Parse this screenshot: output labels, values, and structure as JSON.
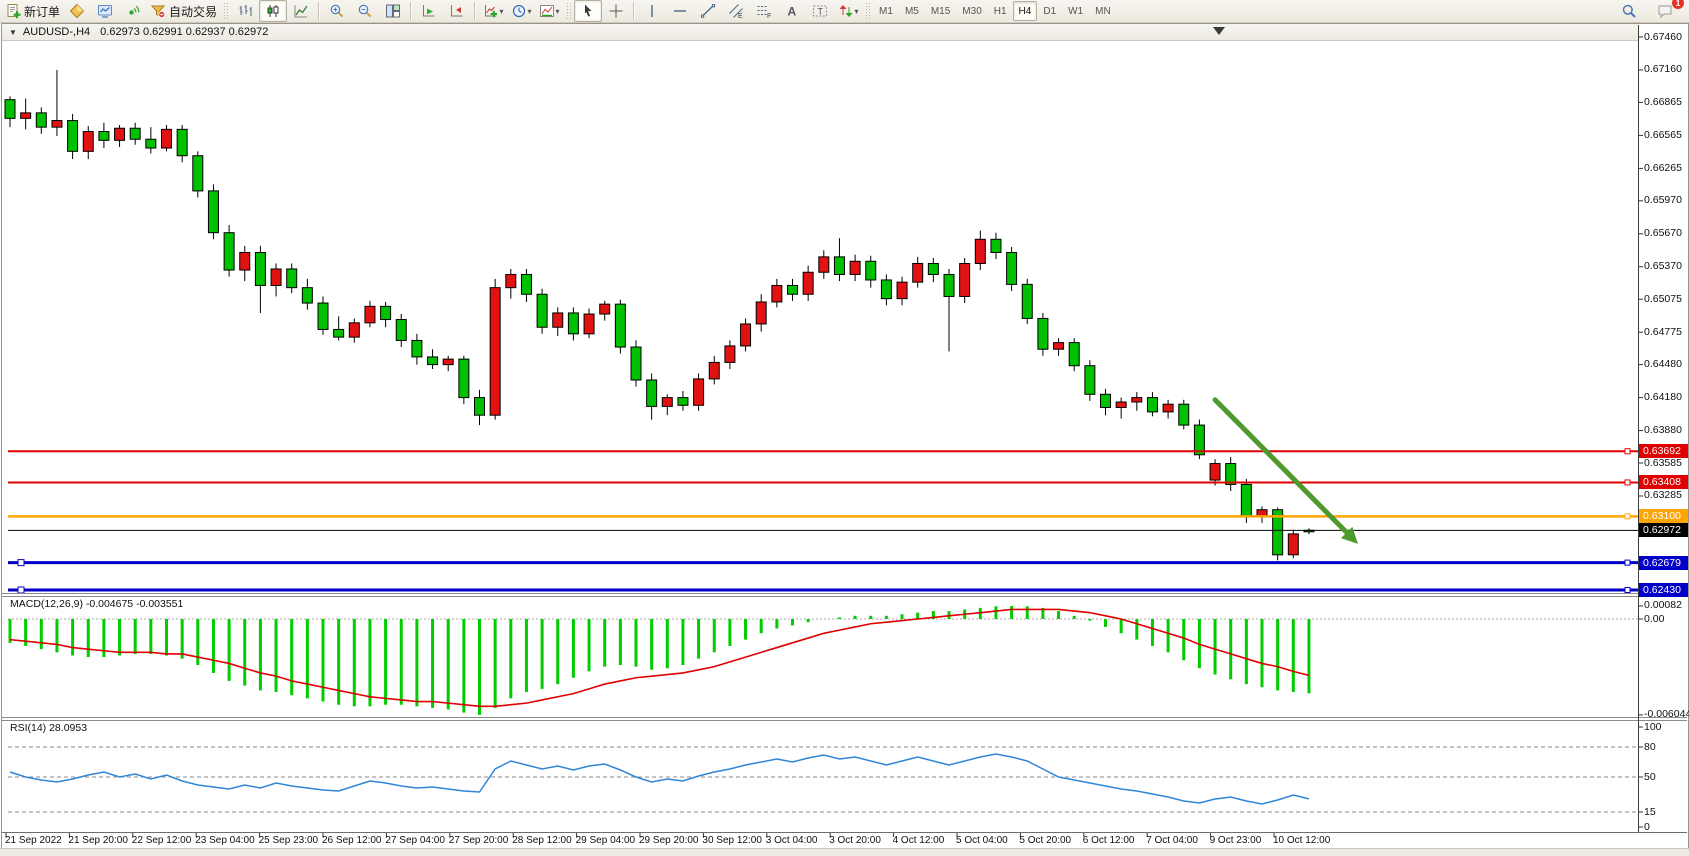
{
  "toolbar": {
    "groups": [
      {
        "name": "trade",
        "handle": false,
        "items": [
          {
            "name": "new-order-button",
            "icon": "new-order",
            "label": "新订单"
          },
          {
            "name": "market-watch-button",
            "icon": "diamond",
            "label": ""
          },
          {
            "name": "chart-window-button",
            "icon": "monitor",
            "label": ""
          },
          {
            "name": "signals-button",
            "icon": "signal",
            "label": ""
          },
          {
            "name": "auto-trading-button",
            "icon": "auto-trade",
            "label": "自动交易"
          }
        ]
      },
      {
        "name": "chart-type",
        "handle": true,
        "items": [
          {
            "name": "bar-chart-button",
            "icon": "bars",
            "label": ""
          },
          {
            "name": "candlestick-chart-button",
            "icon": "candles",
            "label": "",
            "active": true
          },
          {
            "name": "line-chart-button",
            "icon": "line-chart",
            "label": ""
          }
        ]
      },
      {
        "name": "zoom",
        "handle": false,
        "items": [
          {
            "name": "zoom-in-button",
            "icon": "zoom-in",
            "label": ""
          },
          {
            "name": "zoom-out-button",
            "icon": "zoom-out",
            "label": ""
          },
          {
            "name": "tile-windows-button",
            "icon": "tile",
            "label": ""
          }
        ]
      },
      {
        "name": "scroll",
        "handle": false,
        "items": [
          {
            "name": "auto-scroll-button",
            "icon": "auto-scroll",
            "label": ""
          },
          {
            "name": "chart-shift-button",
            "icon": "chart-shift",
            "label": ""
          }
        ]
      },
      {
        "name": "insert",
        "handle": false,
        "items": [
          {
            "name": "indicators-button",
            "icon": "indicators",
            "label": "",
            "dropdown": true
          },
          {
            "name": "periods-button",
            "icon": "periods",
            "label": "",
            "dropdown": true
          },
          {
            "name": "templates-button",
            "icon": "templates",
            "label": "",
            "dropdown": true
          }
        ]
      },
      {
        "name": "cursor",
        "handle": true,
        "items": [
          {
            "name": "cursor-button",
            "icon": "pointer",
            "label": "",
            "active": true
          },
          {
            "name": "crosshair-button",
            "icon": "crosshair",
            "label": ""
          }
        ]
      },
      {
        "name": "draw",
        "handle": false,
        "items": [
          {
            "name": "vertical-line-button",
            "icon": "vline",
            "label": ""
          },
          {
            "name": "horizontal-line-button",
            "icon": "hline",
            "label": ""
          },
          {
            "name": "trendline-button",
            "icon": "trendline",
            "label": ""
          },
          {
            "name": "equidistant-channel-button",
            "icon": "channel",
            "label": ""
          },
          {
            "name": "fibonacci-button",
            "icon": "fibonacci",
            "label": ""
          },
          {
            "name": "text-button",
            "icon": "text",
            "label": ""
          },
          {
            "name": "text-label-button",
            "icon": "text-label",
            "label": ""
          },
          {
            "name": "arrows-button",
            "icon": "arrows",
            "label": "",
            "dropdown": true
          }
        ]
      },
      {
        "name": "timeframes",
        "handle": true,
        "timeframes": [
          {
            "label": "M1"
          },
          {
            "label": "M5"
          },
          {
            "label": "M15"
          },
          {
            "label": "M30"
          },
          {
            "label": "H1"
          },
          {
            "label": "H4",
            "active": true
          },
          {
            "label": "D1"
          },
          {
            "label": "W1"
          },
          {
            "label": "MN"
          }
        ]
      }
    ],
    "right": {
      "notification_count": "1"
    }
  },
  "caption": {
    "symbol_period": "AUDUSD-,H4",
    "ohlc_display": "0.62973 0.62991 0.62937 0.62972"
  },
  "indicators_text": {
    "macd_title": "MACD(12,26,9) -0.004675 -0.003551",
    "rsi_title": "RSI(14) 28.0953"
  },
  "chart_data": {
    "type": "candlestick",
    "symbol": "AUDUSD-",
    "timeframe": "H4",
    "current_bar": {
      "open": 0.62973,
      "high": 0.62991,
      "low": 0.62937,
      "close": 0.62972
    },
    "colors": {
      "bearish": "#00C100",
      "bullish": "#E31212",
      "macd_hist": "#00CC00",
      "macd_signal": "#E00000",
      "rsi_line": "#2F86D7",
      "arrow": "#4E9A2E"
    },
    "price_axis_ticks": [
      "0.67460",
      "0.67160",
      "0.66865",
      "0.66565",
      "0.66265",
      "0.65970",
      "0.65670",
      "0.65370",
      "0.65075",
      "0.64775",
      "0.64480",
      "0.64180",
      "0.63880",
      "0.63585",
      "0.63285"
    ],
    "price_axis_tick_values": [
      0.6746,
      0.6716,
      0.66865,
      0.66565,
      0.66265,
      0.6597,
      0.6567,
      0.6537,
      0.65075,
      0.64775,
      0.6448,
      0.6418,
      0.6388,
      0.63585,
      0.63285
    ],
    "horizontal_lines": [
      {
        "label": "0.63692",
        "value": 0.63692,
        "color": "#E00000",
        "width": 2,
        "anchors": [
          "right"
        ]
      },
      {
        "label": "0.63408",
        "value": 0.63408,
        "color": "#E00000",
        "width": 2,
        "anchors": [
          "right"
        ]
      },
      {
        "label": "0.63100",
        "value": 0.631,
        "color": "#FFA500",
        "width": 2.5,
        "anchors": [
          "right"
        ]
      },
      {
        "label": "0.62972",
        "value": 0.62972,
        "color": "#000000",
        "width": 1,
        "anchors": [],
        "current_price": true
      },
      {
        "label": "0.62679",
        "value": 0.62679,
        "color": "#0000C8",
        "width": 3,
        "anchors": [
          "left",
          "right"
        ]
      },
      {
        "label": "0.62430",
        "value": 0.6243,
        "color": "#0000C8",
        "width": 3,
        "anchors": [
          "left",
          "right"
        ]
      }
    ],
    "candles": [
      [
        0.6689,
        0.6692,
        0.6664,
        0.6672
      ],
      [
        0.6672,
        0.669,
        0.6662,
        0.6677
      ],
      [
        0.6677,
        0.6682,
        0.6658,
        0.6664
      ],
      [
        0.6664,
        0.6716,
        0.6656,
        0.667
      ],
      [
        0.667,
        0.6676,
        0.6635,
        0.6642
      ],
      [
        0.6642,
        0.6665,
        0.6635,
        0.666
      ],
      [
        0.666,
        0.6668,
        0.6645,
        0.6652
      ],
      [
        0.6652,
        0.6666,
        0.6646,
        0.6663
      ],
      [
        0.6663,
        0.6668,
        0.6648,
        0.6653
      ],
      [
        0.6653,
        0.6664,
        0.664,
        0.6645
      ],
      [
        0.6645,
        0.6666,
        0.6642,
        0.6662
      ],
      [
        0.6662,
        0.6666,
        0.6632,
        0.6638
      ],
      [
        0.6638,
        0.6642,
        0.66,
        0.6606
      ],
      [
        0.6606,
        0.6612,
        0.6562,
        0.6568
      ],
      [
        0.6568,
        0.6575,
        0.6528,
        0.6534
      ],
      [
        0.6534,
        0.6556,
        0.6524,
        0.655
      ],
      [
        0.655,
        0.6556,
        0.6495,
        0.652
      ],
      [
        0.652,
        0.654,
        0.651,
        0.6535
      ],
      [
        0.6535,
        0.654,
        0.6513,
        0.6518
      ],
      [
        0.6518,
        0.6526,
        0.6498,
        0.6504
      ],
      [
        0.6504,
        0.651,
        0.6475,
        0.648
      ],
      [
        0.648,
        0.6492,
        0.647,
        0.6473
      ],
      [
        0.6473,
        0.649,
        0.6468,
        0.6486
      ],
      [
        0.6486,
        0.6506,
        0.6482,
        0.6501
      ],
      [
        0.6501,
        0.6505,
        0.6482,
        0.6489
      ],
      [
        0.6489,
        0.6494,
        0.6464,
        0.647
      ],
      [
        0.647,
        0.6476,
        0.6448,
        0.6455
      ],
      [
        0.6455,
        0.6462,
        0.6444,
        0.6448
      ],
      [
        0.6448,
        0.6456,
        0.6442,
        0.6453
      ],
      [
        0.6453,
        0.6456,
        0.6412,
        0.6418
      ],
      [
        0.6418,
        0.6425,
        0.6393,
        0.6402
      ],
      [
        0.6402,
        0.6526,
        0.6398,
        0.6518
      ],
      [
        0.6518,
        0.6535,
        0.6508,
        0.653
      ],
      [
        0.653,
        0.6535,
        0.6505,
        0.6512
      ],
      [
        0.6512,
        0.6517,
        0.6476,
        0.6482
      ],
      [
        0.6482,
        0.65,
        0.6474,
        0.6495
      ],
      [
        0.6495,
        0.65,
        0.647,
        0.6476
      ],
      [
        0.6476,
        0.6499,
        0.6472,
        0.6494
      ],
      [
        0.6494,
        0.6506,
        0.6488,
        0.6503
      ],
      [
        0.6503,
        0.6507,
        0.6458,
        0.6464
      ],
      [
        0.6464,
        0.647,
        0.6428,
        0.6434
      ],
      [
        0.6434,
        0.644,
        0.6398,
        0.641
      ],
      [
        0.641,
        0.6421,
        0.6402,
        0.6418
      ],
      [
        0.6418,
        0.6424,
        0.6406,
        0.6411
      ],
      [
        0.6411,
        0.644,
        0.6406,
        0.6435
      ],
      [
        0.6435,
        0.6456,
        0.643,
        0.645
      ],
      [
        0.645,
        0.647,
        0.6444,
        0.6465
      ],
      [
        0.6465,
        0.649,
        0.646,
        0.6485
      ],
      [
        0.6485,
        0.6512,
        0.6478,
        0.6505
      ],
      [
        0.6505,
        0.6526,
        0.65,
        0.652
      ],
      [
        0.652,
        0.6526,
        0.6506,
        0.6512
      ],
      [
        0.6512,
        0.6538,
        0.6506,
        0.6532
      ],
      [
        0.6532,
        0.6552,
        0.6526,
        0.6546
      ],
      [
        0.6546,
        0.6563,
        0.6524,
        0.653
      ],
      [
        0.653,
        0.6548,
        0.6524,
        0.6542
      ],
      [
        0.6542,
        0.6547,
        0.6518,
        0.6525
      ],
      [
        0.6525,
        0.653,
        0.6502,
        0.6508
      ],
      [
        0.6508,
        0.6528,
        0.6502,
        0.6523
      ],
      [
        0.6523,
        0.6546,
        0.6518,
        0.654
      ],
      [
        0.654,
        0.6545,
        0.6523,
        0.653
      ],
      [
        0.653,
        0.6535,
        0.646,
        0.651
      ],
      [
        0.651,
        0.6545,
        0.6504,
        0.654
      ],
      [
        0.654,
        0.657,
        0.6534,
        0.6562
      ],
      [
        0.6562,
        0.6568,
        0.6544,
        0.655
      ],
      [
        0.655,
        0.6555,
        0.6515,
        0.6521
      ],
      [
        0.6521,
        0.6526,
        0.6485,
        0.649
      ],
      [
        0.649,
        0.6495,
        0.6456,
        0.6462
      ],
      [
        0.6462,
        0.6472,
        0.6456,
        0.6468
      ],
      [
        0.6468,
        0.6472,
        0.6442,
        0.6447
      ],
      [
        0.6447,
        0.6452,
        0.6415,
        0.6421
      ],
      [
        0.6421,
        0.6426,
        0.6402,
        0.6409
      ],
      [
        0.6409,
        0.6418,
        0.6399,
        0.6414
      ],
      [
        0.6414,
        0.6423,
        0.6406,
        0.6418
      ],
      [
        0.6418,
        0.6423,
        0.6401,
        0.6405
      ],
      [
        0.6405,
        0.6416,
        0.6399,
        0.6412
      ],
      [
        0.6412,
        0.6416,
        0.6389,
        0.6393
      ],
      [
        0.6393,
        0.6398,
        0.6362,
        0.6366
      ],
      [
        0.6343,
        0.6362,
        0.6338,
        0.6358
      ],
      [
        0.6358,
        0.6364,
        0.6333,
        0.6339
      ],
      [
        0.6339,
        0.6344,
        0.6304,
        0.631
      ],
      [
        0.631,
        0.6319,
        0.6304,
        0.6316
      ],
      [
        0.6316,
        0.6318,
        0.627,
        0.6275
      ],
      [
        0.6275,
        0.6298,
        0.6272,
        0.6294
      ],
      [
        0.62973,
        0.62991,
        0.62937,
        0.62972
      ]
    ],
    "indicators": {
      "macd": {
        "name": "MACD",
        "params": "12,26,9",
        "value": -0.004675,
        "signal_value": -0.003551,
        "axis_labels": [
          {
            "text": "0.00082",
            "v": 0.00082
          },
          {
            "text": "0.00",
            "v": 0.0
          },
          {
            "text": "-0.006044",
            "v": -0.006044
          }
        ],
        "histogram": [
          -0.0015,
          -0.0017,
          -0.0019,
          -0.0021,
          -0.0023,
          -0.0024,
          -0.0024,
          -0.0023,
          -0.0022,
          -0.0022,
          -0.0023,
          -0.0025,
          -0.0029,
          -0.0034,
          -0.0039,
          -0.0042,
          -0.0045,
          -0.0046,
          -0.0048,
          -0.005,
          -0.0052,
          -0.0054,
          -0.0055,
          -0.0055,
          -0.0054,
          -0.0054,
          -0.0055,
          -0.0056,
          -0.0057,
          -0.0059,
          -0.006044,
          -0.0056,
          -0.005,
          -0.0046,
          -0.0044,
          -0.0041,
          -0.0037,
          -0.0033,
          -0.003,
          -0.0029,
          -0.003,
          -0.0032,
          -0.0031,
          -0.0029,
          -0.0025,
          -0.0021,
          -0.0017,
          -0.0013,
          -0.0009,
          -0.0006,
          -0.0004,
          -0.0002,
          0.0,
          0.0001,
          0.0002,
          0.0002,
          0.0002,
          0.0003,
          0.0004,
          0.0005,
          0.0005,
          0.0006,
          0.0007,
          0.0008,
          0.00082,
          0.0008,
          0.0007,
          0.0005,
          0.0002,
          -0.0001,
          -0.0005,
          -0.0009,
          -0.0013,
          -0.0017,
          -0.0021,
          -0.0026,
          -0.0031,
          -0.0035,
          -0.0038,
          -0.0041,
          -0.0043,
          -0.0045,
          -0.0046,
          -0.004675
        ],
        "signal": [
          -0.0013,
          -0.0014,
          -0.0015,
          -0.0016,
          -0.0018,
          -0.0019,
          -0.002,
          -0.0021,
          -0.0021,
          -0.0021,
          -0.0022,
          -0.0022,
          -0.0024,
          -0.0026,
          -0.0028,
          -0.0031,
          -0.0034,
          -0.0036,
          -0.0039,
          -0.0041,
          -0.0043,
          -0.0045,
          -0.0047,
          -0.0049,
          -0.005,
          -0.0051,
          -0.0052,
          -0.0052,
          -0.0053,
          -0.0054,
          -0.0055,
          -0.0055,
          -0.0054,
          -0.0053,
          -0.0051,
          -0.0049,
          -0.0047,
          -0.0044,
          -0.0041,
          -0.0039,
          -0.0037,
          -0.0036,
          -0.0035,
          -0.0034,
          -0.0032,
          -0.003,
          -0.0027,
          -0.0024,
          -0.0021,
          -0.0018,
          -0.0015,
          -0.0012,
          -0.0009,
          -0.0007,
          -0.0005,
          -0.0003,
          -0.0002,
          -0.0001,
          0.0,
          0.0001,
          0.0002,
          0.0003,
          0.0004,
          0.0005,
          0.0006,
          0.0006,
          0.0006,
          0.0006,
          0.0005,
          0.0004,
          0.0002,
          0.0,
          -0.0003,
          -0.0006,
          -0.0009,
          -0.0012,
          -0.0016,
          -0.0019,
          -0.0022,
          -0.0025,
          -0.0028,
          -0.003,
          -0.0033,
          -0.003551
        ]
      },
      "rsi": {
        "name": "RSI",
        "params": "14",
        "value": 28.0953,
        "levels": [
          80,
          50,
          15
        ],
        "axis_labels": [
          100,
          80,
          50,
          15,
          0
        ],
        "series": [
          55,
          50,
          47,
          45,
          48,
          52,
          55,
          50,
          53,
          48,
          52,
          46,
          42,
          40,
          38,
          42,
          39,
          44,
          41,
          39,
          37,
          36,
          41,
          46,
          44,
          41,
          39,
          40,
          38,
          36,
          35,
          58,
          66,
          62,
          58,
          61,
          57,
          61,
          63,
          57,
          50,
          45,
          48,
          46,
          51,
          55,
          58,
          62,
          65,
          68,
          65,
          69,
          72,
          68,
          70,
          66,
          62,
          66,
          70,
          66,
          62,
          66,
          70,
          73,
          70,
          66,
          58,
          50,
          47,
          44,
          41,
          38,
          36,
          33,
          30,
          26,
          24,
          28,
          30,
          26,
          23,
          27,
          32,
          28.1
        ]
      }
    },
    "x_labels": [
      "21 Sep 2022",
      "21 Sep 20:00",
      "22 Sep 12:00",
      "23 Sep 04:00",
      "25 Sep 23:00",
      "26 Sep 12:00",
      "27 Sep 04:00",
      "27 Sep 20:00",
      "28 Sep 12:00",
      "29 Sep 04:00",
      "29 Sep 20:00",
      "30 Sep 12:00",
      "3 Oct 04:00",
      "3 Oct 20:00",
      "4 Oct 12:00",
      "5 Oct 04:00",
      "5 Oct 20:00",
      "6 Oct 12:00",
      "7 Oct 04:00",
      "9 Oct 23:00",
      "10 Oct 12:00"
    ],
    "annotation_arrow": {
      "from_bar": 77,
      "from_price": 0.6416,
      "to_bar": 85.5,
      "to_price": 0.6294,
      "color": "#4E9A2E"
    }
  }
}
